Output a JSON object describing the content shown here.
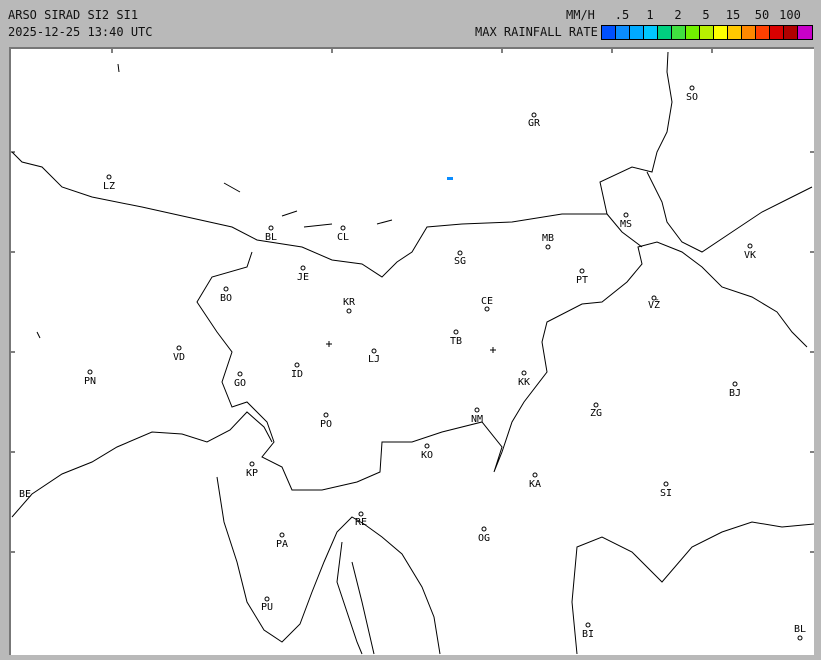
{
  "header": {
    "title": "ARSO SIRAD SI2 SI1",
    "timestamp": "2025-12-25 13:40 UTC",
    "unit": "MM/H",
    "legend_title": "MAX RAINFALL RATE"
  },
  "legend": {
    "ticks": [
      ".5",
      "1",
      "2",
      "5",
      "15",
      "50",
      "100"
    ],
    "colors": [
      "#0050ff",
      "#0a8cff",
      "#00aaff",
      "#00c8ff",
      "#00d080",
      "#40e040",
      "#70f000",
      "#b8f000",
      "#ffff00",
      "#ffc800",
      "#ff8800",
      "#ff4000",
      "#d80000",
      "#b00000",
      "#c800c8"
    ]
  },
  "map": {
    "cities": [
      {
        "code": "SO"
      },
      {
        "code": "GR"
      },
      {
        "code": "LZ"
      },
      {
        "code": "BL"
      },
      {
        "code": "CL"
      },
      {
        "code": "MS"
      },
      {
        "code": "MB"
      },
      {
        "code": "SG"
      },
      {
        "code": "VK"
      },
      {
        "code": "JE"
      },
      {
        "code": "PT"
      },
      {
        "code": "BO"
      },
      {
        "code": "KR"
      },
      {
        "code": "CE"
      },
      {
        "code": "VŽ"
      },
      {
        "code": "TB"
      },
      {
        "code": "VD"
      },
      {
        "code": "LJ"
      },
      {
        "code": "PN"
      },
      {
        "code": "ID"
      },
      {
        "code": "GO"
      },
      {
        "code": "KK"
      },
      {
        "code": "BJ"
      },
      {
        "code": "ZG"
      },
      {
        "code": "PO"
      },
      {
        "code": "NM"
      },
      {
        "code": "KO"
      },
      {
        "code": "KP"
      },
      {
        "code": "KA"
      },
      {
        "code": "SI"
      },
      {
        "code": "BE"
      },
      {
        "code": "RE"
      },
      {
        "code": "PA"
      },
      {
        "code": "OG"
      },
      {
        "code": "PU"
      },
      {
        "code": "BI"
      },
      {
        "code": "BL"
      }
    ],
    "echo_color": "#0a8cff"
  }
}
